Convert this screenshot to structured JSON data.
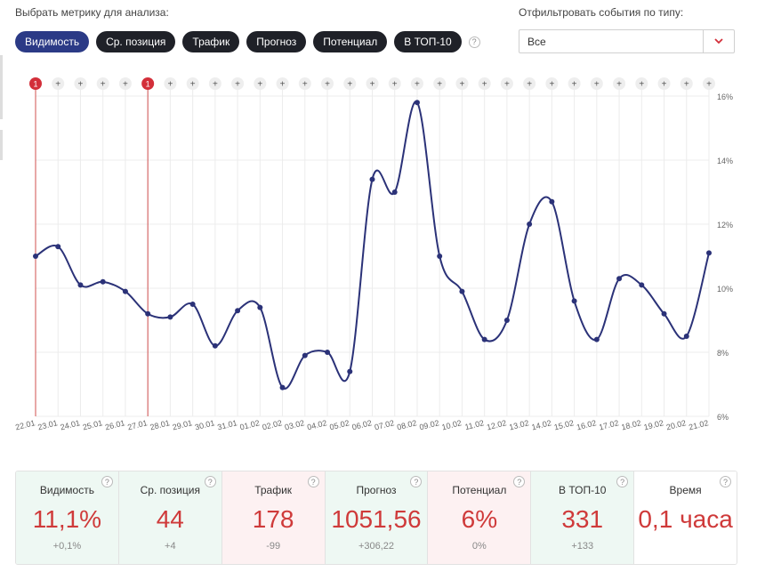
{
  "header": {
    "metric_label": "Выбрать метрику для анализа:",
    "filter_label": "Отфильтровать события по типу:",
    "filter_value": "Все",
    "metrics": [
      {
        "label": "Видимость",
        "active": true
      },
      {
        "label": "Ср. позиция",
        "active": false
      },
      {
        "label": "Трафик",
        "active": false
      },
      {
        "label": "Прогноз",
        "active": false
      },
      {
        "label": "Потенциал",
        "active": false
      },
      {
        "label": "В ТОП-10",
        "active": false
      }
    ],
    "help_glyph": "?"
  },
  "colors": {
    "line": "#2b3278",
    "event_marker": "#d32f3a",
    "event_line": "#d0504f",
    "value_red": "#cf3a3a",
    "card_green": "#eef8f3",
    "card_red": "#fdf1f2"
  },
  "chart_data": {
    "type": "line",
    "x": [
      "22.01",
      "23.01",
      "24.01",
      "25.01",
      "26.01",
      "27.01",
      "28.01",
      "29.01",
      "30.01",
      "31.01",
      "01.02",
      "02.02",
      "03.02",
      "04.02",
      "05.02",
      "06.02",
      "07.02",
      "08.02",
      "09.02",
      "10.02",
      "11.02",
      "12.02",
      "13.02",
      "14.02",
      "15.02",
      "16.02",
      "17.02",
      "18.02",
      "19.02",
      "20.02",
      "21.02"
    ],
    "series": [
      {
        "values": [
          11.0,
          11.3,
          10.1,
          10.2,
          9.9,
          9.2,
          9.1,
          9.5,
          8.2,
          9.3,
          9.4,
          6.9,
          7.9,
          8.0,
          7.4,
          13.4,
          13.0,
          15.8,
          11.0,
          9.9,
          8.4,
          9.0,
          12.0,
          12.7,
          9.6,
          8.4,
          10.3,
          10.1,
          9.2,
          8.5,
          11.1
        ]
      }
    ],
    "ylim": [
      6,
      16
    ],
    "yticks": [
      "6%",
      "8%",
      "10%",
      "12%",
      "14%",
      "16%"
    ],
    "y_axis_side": "right",
    "grid": true,
    "events": [
      {
        "date": "22.01",
        "label": "1"
      },
      {
        "date": "27.01",
        "label": "1"
      }
    ],
    "add_marker_label": "+"
  },
  "stats": [
    {
      "title": "Видимость",
      "value": "11,1%",
      "delta": "+0,1%",
      "tone": "green"
    },
    {
      "title": "Ср. позиция",
      "value": "44",
      "delta": "+4",
      "tone": "green"
    },
    {
      "title": "Трафик",
      "value": "178",
      "delta": "-99",
      "tone": "red"
    },
    {
      "title": "Прогноз",
      "value": "1051,56",
      "delta": "+306,22",
      "tone": "green"
    },
    {
      "title": "Потенциал",
      "value": "6%",
      "delta": "0%",
      "tone": "red"
    },
    {
      "title": "В ТОП-10",
      "value": "331",
      "delta": "+133",
      "tone": "green"
    },
    {
      "title": "Время",
      "value": "0,1 часа",
      "delta": "",
      "tone": "white"
    }
  ]
}
